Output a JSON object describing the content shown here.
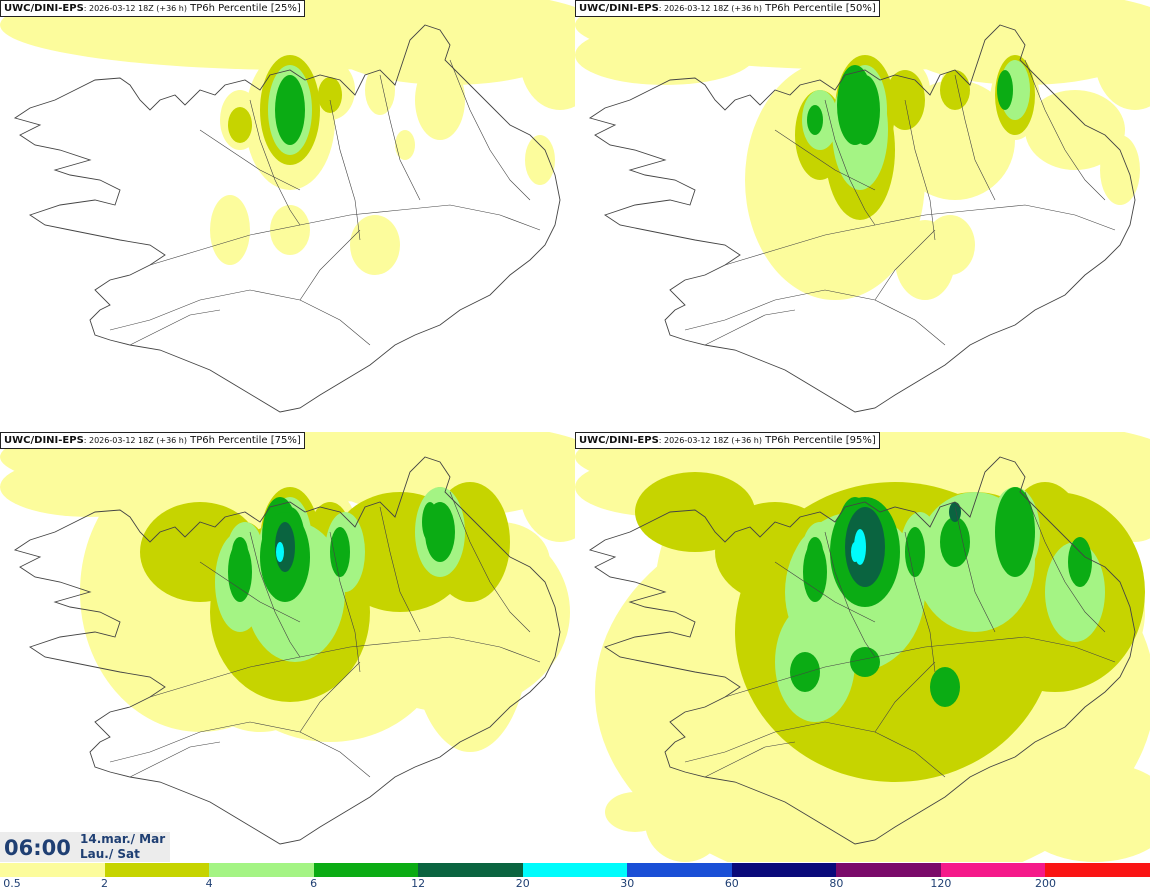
{
  "panels": [
    {
      "model": "UWC/DINI-EPS",
      "run": ": 2026-03-12 18Z (+36 h)",
      "field": " TP6h Percentile [25%]",
      "level": 1
    },
    {
      "model": "UWC/DINI-EPS",
      "run": ": 2026-03-12 18Z (+36 h)",
      "field": " TP6h Percentile [50%]",
      "level": 2
    },
    {
      "model": "UWC/DINI-EPS",
      "run": ": 2026-03-12 18Z (+36 h)",
      "field": " TP6h Percentile [75%]",
      "level": 3
    },
    {
      "model": "UWC/DINI-EPS",
      "run": ": 2026-03-12 18Z (+36 h)",
      "field": " TP6h Percentile [95%]",
      "level": 4
    }
  ],
  "valid_time": {
    "time": "06:00",
    "date_line1": "14.mar./ Mar",
    "date_line2": "Lau./ Sat"
  },
  "legend": {
    "labels": [
      "0.5",
      "2",
      "4",
      "6",
      "12",
      "20",
      "30",
      "60",
      "80",
      "120",
      "200"
    ],
    "colors": [
      "#fcfc9c",
      "#c6d400",
      "#a4f484",
      "#0bac14",
      "#0a6440",
      "#00fcfc",
      "#1a4fd6",
      "#0a0a7a",
      "#7a0a6a",
      "#f51a8a",
      "#fa1414"
    ]
  },
  "map_colors": {
    "land": "#ffffff",
    "coast": "#444444"
  }
}
